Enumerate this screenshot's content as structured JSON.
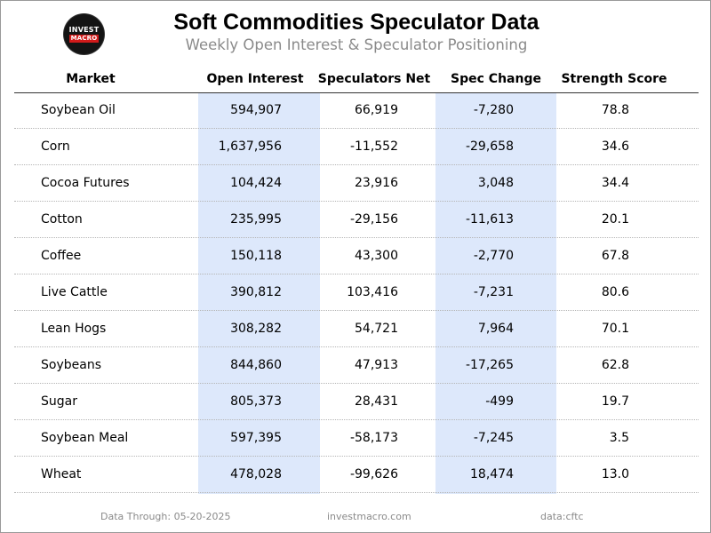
{
  "logo": {
    "line1": "INVEST",
    "line2": "MACRO",
    "accent_color": "#d11a1a"
  },
  "header": {
    "title": "Soft Commodities Speculator Data",
    "subtitle": "Weekly Open Interest & Speculator Positioning"
  },
  "table": {
    "columns": {
      "market": "Market",
      "open_interest": "Open Interest",
      "speculators_net": "Speculators Net",
      "spec_change": "Spec Change",
      "strength_score": "Strength Score"
    },
    "highlight_color": "#dde8fb",
    "rows": [
      {
        "market": "Soybean Oil",
        "open_interest": "594,907",
        "speculators_net": "66,919",
        "spec_change": "-7,280",
        "strength_score": "78.8"
      },
      {
        "market": "Corn",
        "open_interest": "1,637,956",
        "speculators_net": "-11,552",
        "spec_change": "-29,658",
        "strength_score": "34.6"
      },
      {
        "market": "Cocoa Futures",
        "open_interest": "104,424",
        "speculators_net": "23,916",
        "spec_change": "3,048",
        "strength_score": "34.4"
      },
      {
        "market": "Cotton",
        "open_interest": "235,995",
        "speculators_net": "-29,156",
        "spec_change": "-11,613",
        "strength_score": "20.1"
      },
      {
        "market": "Coffee",
        "open_interest": "150,118",
        "speculators_net": "43,300",
        "spec_change": "-2,770",
        "strength_score": "67.8"
      },
      {
        "market": "Live Cattle",
        "open_interest": "390,812",
        "speculators_net": "103,416",
        "spec_change": "-7,231",
        "strength_score": "80.6"
      },
      {
        "market": "Lean Hogs",
        "open_interest": "308,282",
        "speculators_net": "54,721",
        "spec_change": "7,964",
        "strength_score": "70.1"
      },
      {
        "market": "Soybeans",
        "open_interest": "844,860",
        "speculators_net": "47,913",
        "spec_change": "-17,265",
        "strength_score": "62.8"
      },
      {
        "market": "Sugar",
        "open_interest": "805,373",
        "speculators_net": "28,431",
        "spec_change": "-499",
        "strength_score": "19.7"
      },
      {
        "market": "Soybean Meal",
        "open_interest": "597,395",
        "speculators_net": "-58,173",
        "spec_change": "-7,245",
        "strength_score": "3.5"
      },
      {
        "market": "Wheat",
        "open_interest": "478,028",
        "speculators_net": "-99,626",
        "spec_change": "18,474",
        "strength_score": "13.0"
      }
    ]
  },
  "footer": {
    "data_through": "Data Through: 05-20-2025",
    "site": "investmacro.com",
    "source": "data:cftc"
  }
}
